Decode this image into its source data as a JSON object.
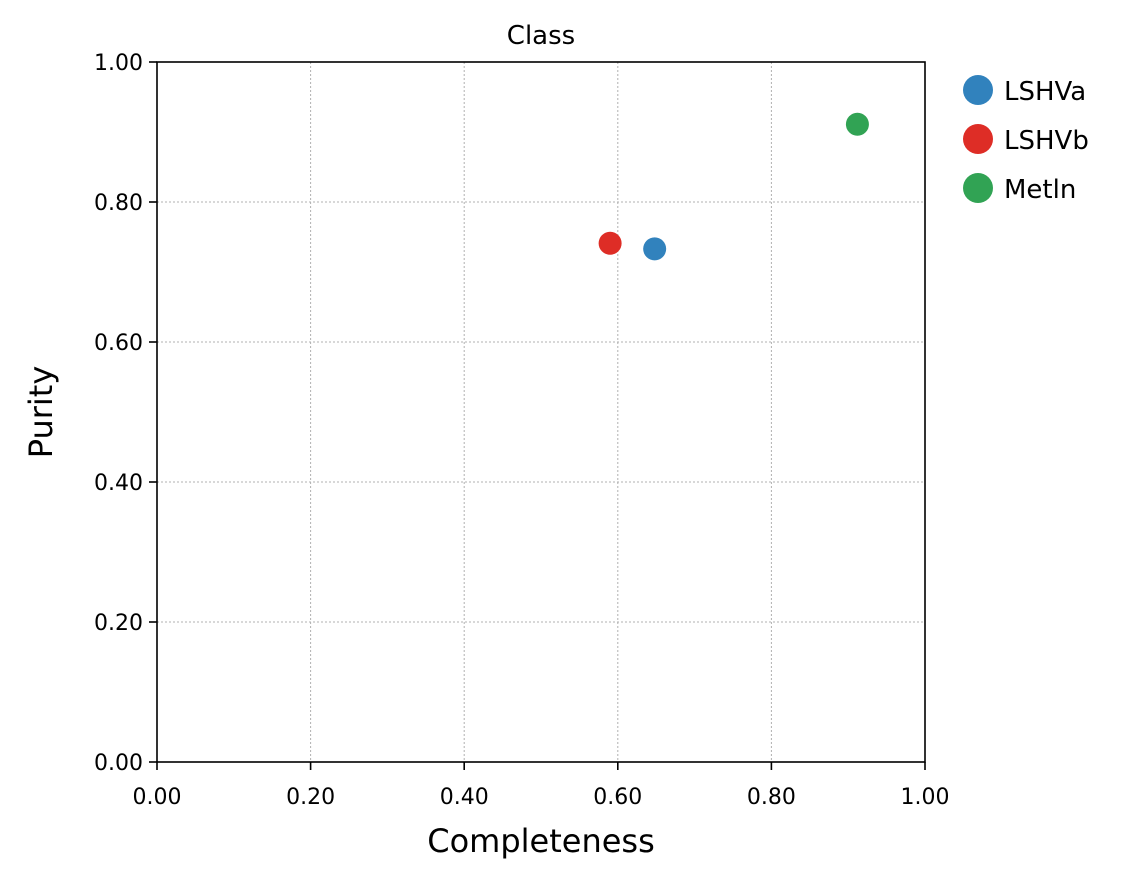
{
  "chart_data": {
    "type": "scatter",
    "title": "Class",
    "xlabel": "Completeness",
    "ylabel": "Purity",
    "xlim": [
      0,
      1
    ],
    "ylim": [
      0,
      1
    ],
    "xticks": [
      "0.00",
      "0.20",
      "0.40",
      "0.60",
      "0.80",
      "1.00"
    ],
    "yticks": [
      "0.00",
      "0.20",
      "0.40",
      "0.60",
      "0.80",
      "1.00"
    ],
    "grid": true,
    "legend_position": "outside-right",
    "series": [
      {
        "name": "LSHVa",
        "color": "#3182bd",
        "x": [
          0.648
        ],
        "y": [
          0.733
        ]
      },
      {
        "name": "LSHVb",
        "color": "#de2d26",
        "x": [
          0.59
        ],
        "y": [
          0.741
        ]
      },
      {
        "name": "Metln",
        "color": "#31a354",
        "x": [
          0.912
        ],
        "y": [
          0.911
        ]
      }
    ]
  }
}
